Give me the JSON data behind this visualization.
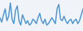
{
  "values": [
    18,
    12,
    22,
    30,
    14,
    20,
    38,
    16,
    10,
    28,
    34,
    14,
    8,
    22,
    16,
    10,
    14,
    8,
    10,
    16,
    14,
    10,
    18,
    24,
    14,
    10,
    16,
    8,
    10,
    14,
    18,
    14,
    10,
    30,
    36,
    16,
    14,
    20,
    14,
    10,
    14,
    16,
    10,
    14,
    16,
    10,
    14,
    22,
    30
  ],
  "line_color": "#4d96d4",
  "background_color": "#f0f4f8",
  "ylim_min": 0,
  "ylim_max": 42,
  "line_width": 1.2
}
